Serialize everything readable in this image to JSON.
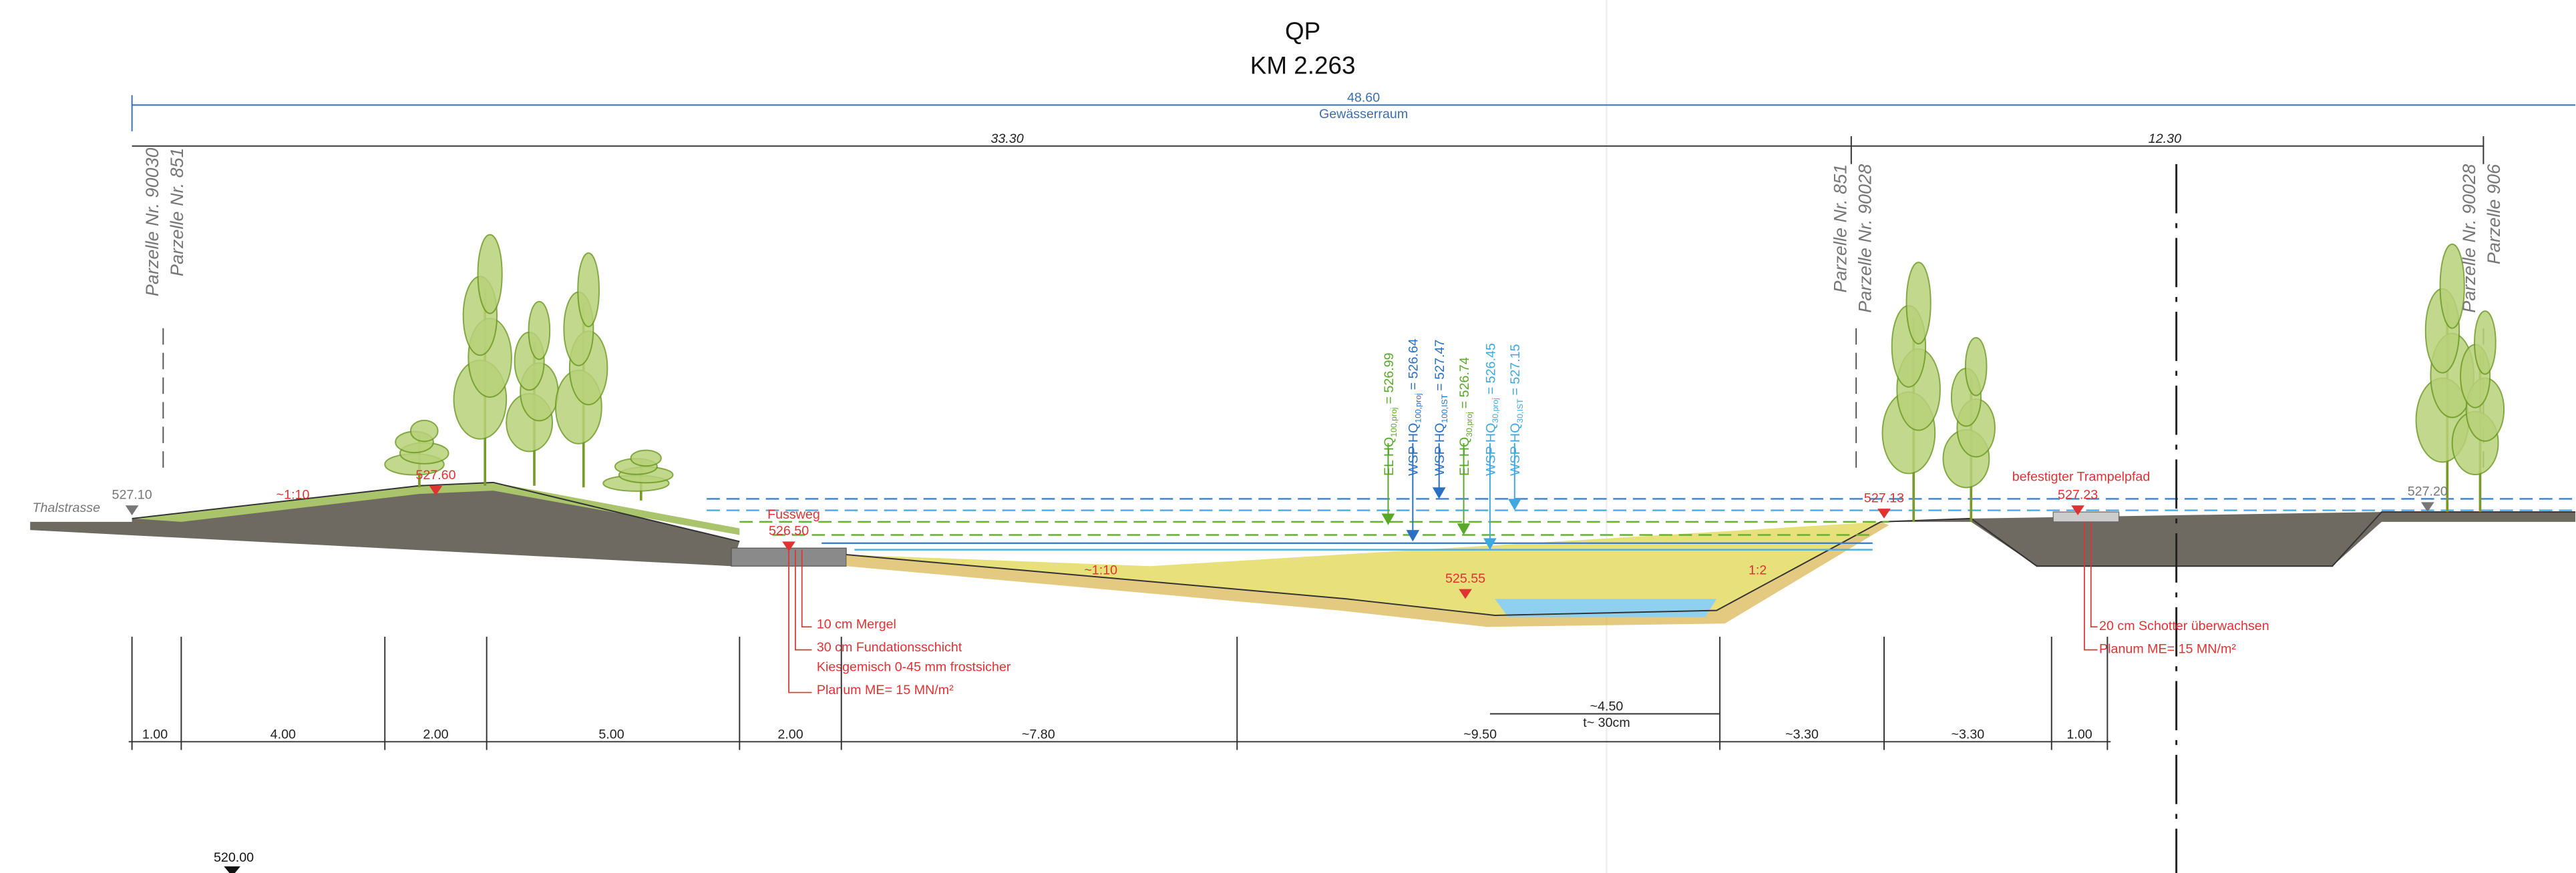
{
  "header": {
    "title": "QP",
    "subtitle": "KM 2.263"
  },
  "width_total": {
    "value": "48.60",
    "label": "Gewässerraum"
  },
  "width_left": "33.30",
  "width_right": "12.30",
  "parcels": [
    "Parzelle Nr. 90030",
    "Parzelle Nr. 851",
    "Parzelle Nr. 851",
    "Parzelle Nr. 90028",
    "Parzelle Nr. 90028",
    "Parzelle 906"
  ],
  "street": "Thalstrasse",
  "elevations": [
    "527.10",
    "527.60",
    "526.50",
    "525.55",
    "527.13",
    "527.23",
    "527.20"
  ],
  "slopes": [
    "~1:10",
    "~1:10",
    "1:2"
  ],
  "footpath": "Fussweg",
  "trampelpfad": "befestigter Trampelpfad",
  "water_levels": [
    {
      "name": "EL HQ",
      "sub": "100,proj",
      "value": "= 526.99"
    },
    {
      "name": "WSP HQ",
      "sub": "100,proj",
      "value": "= 526.64"
    },
    {
      "name": "WSP HQ",
      "sub": "100,IST",
      "value": "= 527.47"
    },
    {
      "name": "EL HQ",
      "sub": "30,proj",
      "value": "= 526.74"
    },
    {
      "name": "WSP HQ",
      "sub": "30,proj",
      "value": "= 526.45"
    },
    {
      "name": "WSP HQ",
      "sub": "30,IST",
      "value": "= 527.15"
    }
  ],
  "notes_left": [
    "10 cm Mergel",
    "30 cm Fundationsschicht",
    "Kiesgemisch 0-45 mm frostsicher",
    "Planum ME= 15 MN/m²"
  ],
  "notes_right": [
    "20 cm Schotter überwachsen",
    "Planum ME= 15 MN/m²"
  ],
  "lowflow": {
    "width": "~4.50",
    "depth": "t~ 30cm"
  },
  "segments": [
    "1.00",
    "4.00",
    "2.00",
    "5.00",
    "2.00",
    "~7.80",
    "~9.50",
    "~3.30",
    "~3.30",
    "1.00"
  ],
  "datum": "520.00"
}
